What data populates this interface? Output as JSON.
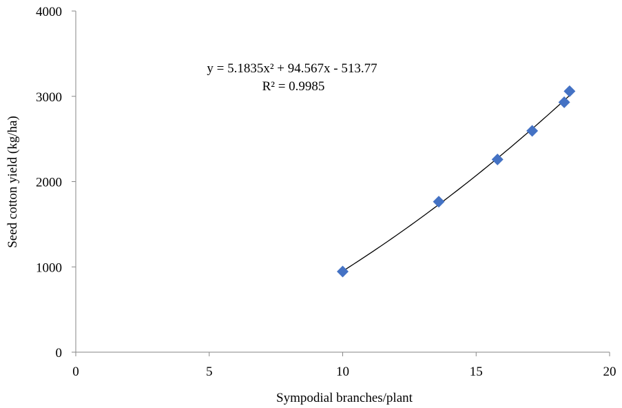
{
  "chart_data": {
    "type": "scatter",
    "title": "",
    "xlabel": "Sympodial branches/plant",
    "ylabel": "Seed cotton yield (kg/ha)",
    "xlim": [
      0,
      20
    ],
    "ylim": [
      0,
      4000
    ],
    "xticks": [
      0,
      5,
      10,
      15,
      20
    ],
    "yticks": [
      0,
      1000,
      2000,
      3000,
      4000
    ],
    "grid": false,
    "legend": "none",
    "marker": "diamond",
    "marker_color": "#4472C4",
    "trendline_color": "#000000",
    "series": [
      {
        "x": [
          10.0,
          13.6,
          15.8,
          17.1,
          18.3,
          18.5
        ],
        "y": [
          945,
          1765,
          2260,
          2595,
          2930,
          3060
        ]
      }
    ],
    "trendline": {
      "type": "polynomial",
      "coefficients": [
        5.1835,
        94.567,
        -513.77
      ],
      "x_range": [
        10.0,
        18.5
      ],
      "equation_label": "y = 5.1835x² + 94.567x - 513.77",
      "r2_label": "R² = 0.9985"
    }
  }
}
